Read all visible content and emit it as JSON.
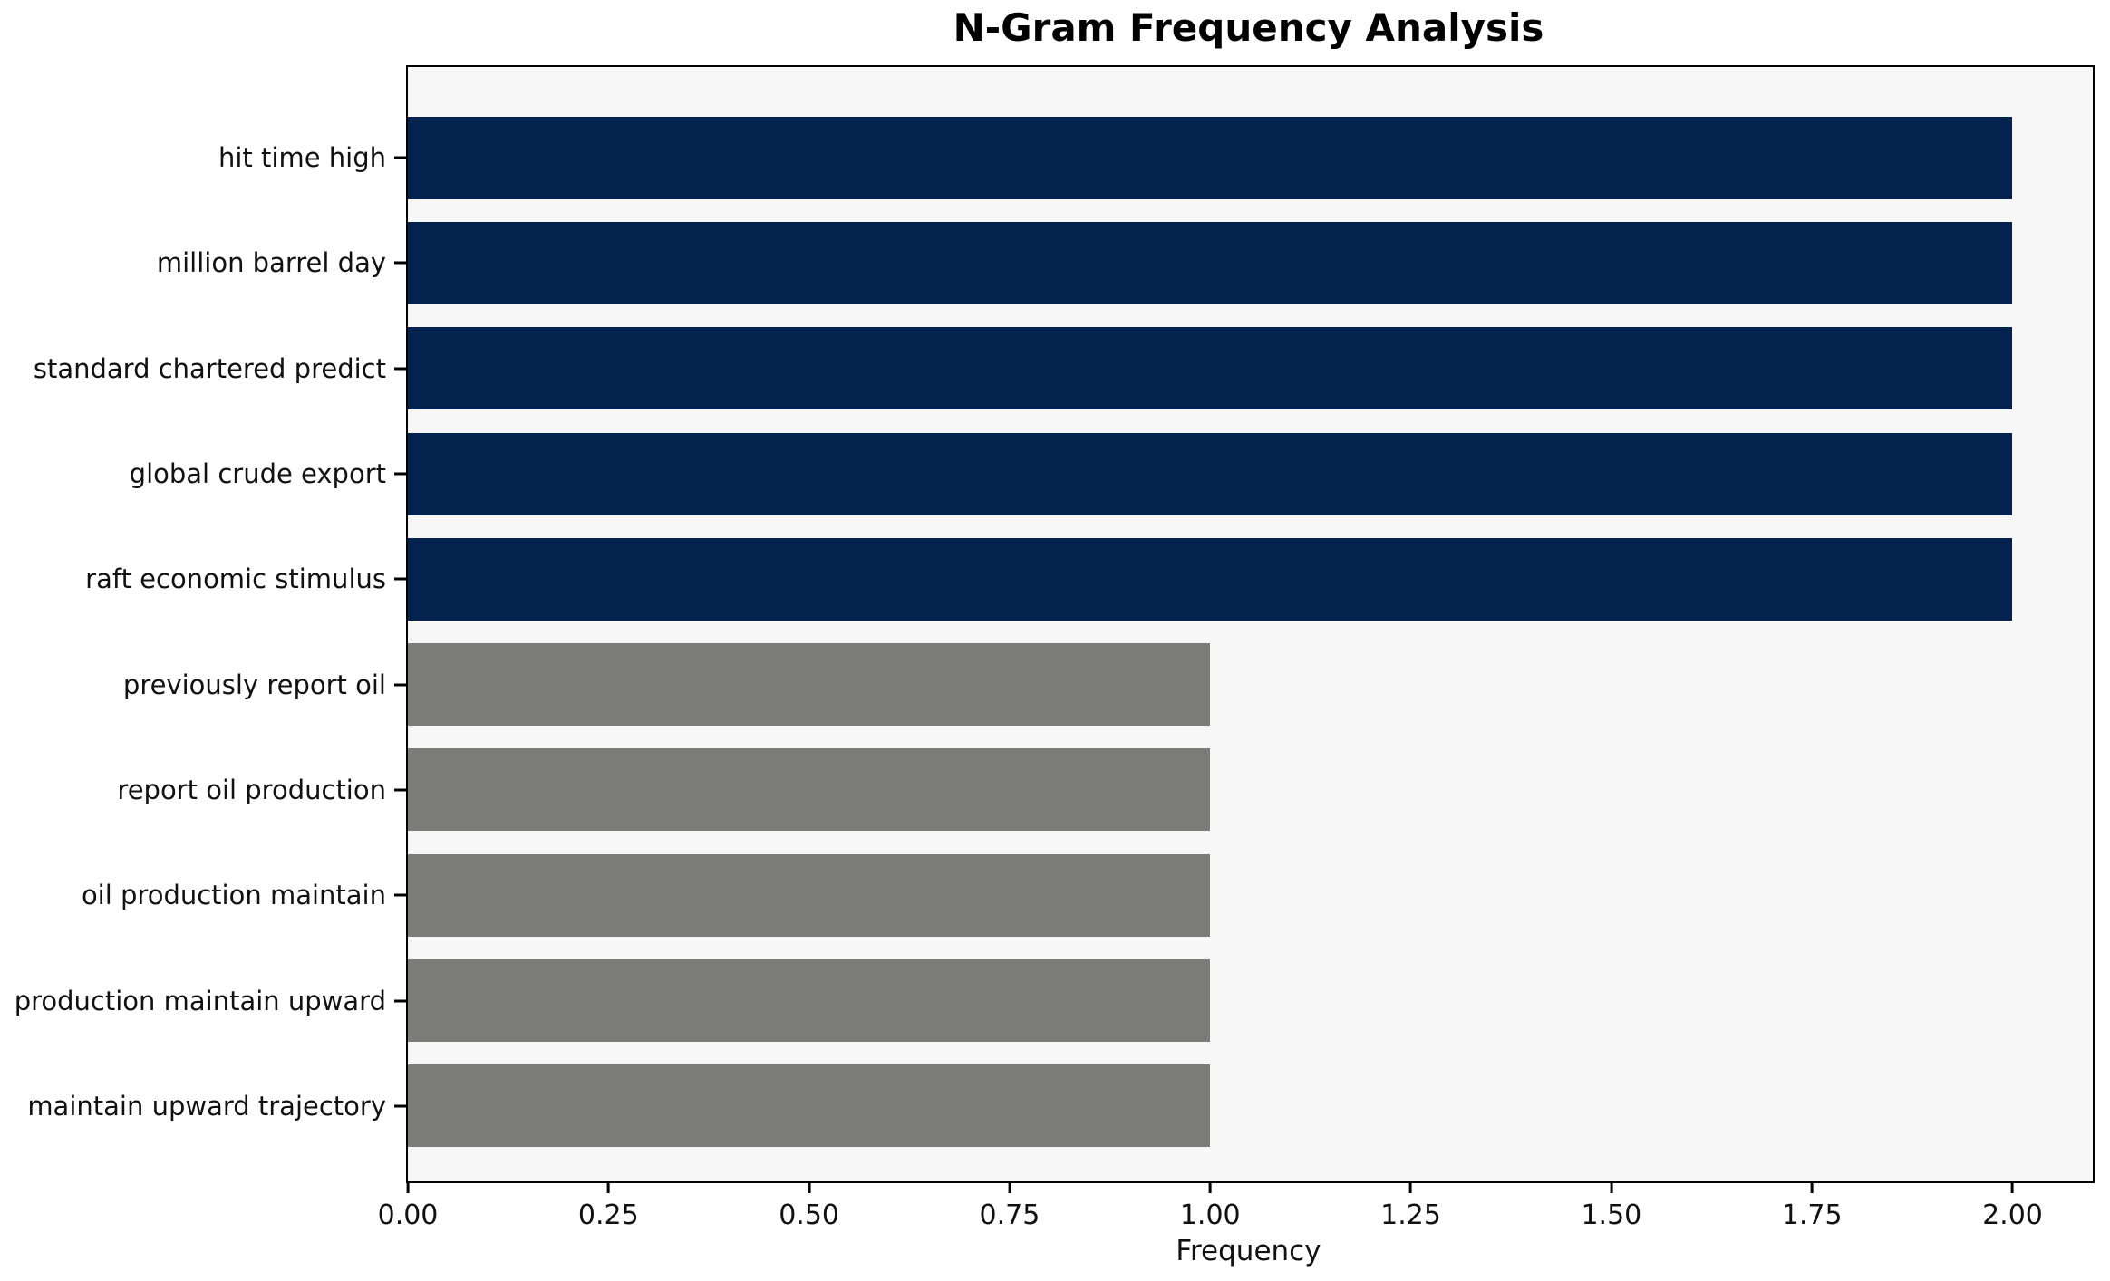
{
  "chart_data": {
    "type": "bar",
    "orientation": "horizontal",
    "title": "N-Gram Frequency Analysis",
    "xlabel": "Frequency",
    "ylabel": "",
    "categories": [
      "hit time high",
      "million barrel day",
      "standard chartered predict",
      "global crude export",
      "raft economic stimulus",
      "previously report oil",
      "report oil production",
      "oil production maintain",
      "production maintain upward",
      "maintain upward trajectory"
    ],
    "values": [
      2,
      2,
      2,
      2,
      2,
      1,
      1,
      1,
      1,
      1
    ],
    "bar_colors": [
      "#03234e",
      "#03234e",
      "#03234e",
      "#03234e",
      "#03234e",
      "#7b7b78",
      "#7b7b78",
      "#7b7b78",
      "#7b7b78",
      "#7b7b78"
    ],
    "xlim": [
      0,
      2.1
    ],
    "xticks": [
      0,
      0.25,
      0.5,
      0.75,
      1.0,
      1.25,
      1.5,
      1.75,
      2.0
    ],
    "xtick_labels": [
      "0.00",
      "0.25",
      "0.50",
      "0.75",
      "1.00",
      "1.25",
      "1.50",
      "1.75",
      "2.00"
    ],
    "grid": false,
    "legend_position": "none",
    "plot_background": "#f7f7f7",
    "figure_background": "#ffffff",
    "axis_color": "#000000"
  }
}
